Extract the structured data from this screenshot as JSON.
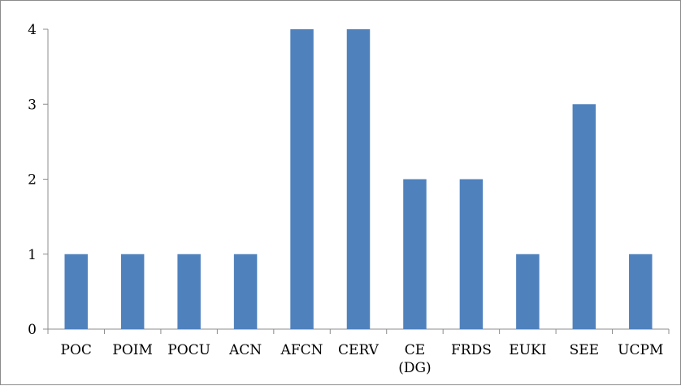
{
  "chart_data": {
    "type": "bar",
    "title": "",
    "xlabel": "",
    "ylabel": "",
    "categories": [
      "POC",
      "POIM",
      "POCU",
      "ACN",
      "AFCN",
      "CERV",
      "CE\n(DG)",
      "FRDS",
      "EUKI",
      "SEE",
      "UCPM"
    ],
    "values": [
      1,
      1,
      1,
      1,
      4,
      4,
      2,
      2,
      1,
      3,
      1
    ],
    "ylim": [
      0,
      4
    ],
    "yticks": [
      0,
      1,
      2,
      3,
      4
    ],
    "grid": false,
    "legend": "none",
    "bar_color": "#4f81bd"
  }
}
